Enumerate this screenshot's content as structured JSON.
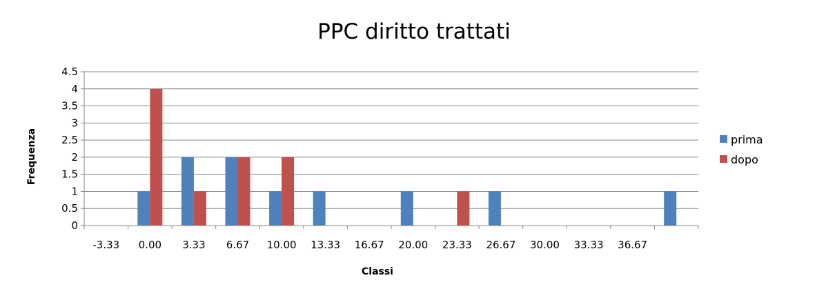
{
  "chart_data": {
    "type": "bar",
    "title": "PPC diritto trattati",
    "xlabel": "Classi",
    "ylabel": "Frequenza",
    "categories": [
      "-3.33",
      "0.00",
      "3.33",
      "6.67",
      "10.00",
      "13.33",
      "16.67",
      "20.00",
      "23.33",
      "26.67",
      "30.00",
      "33.33",
      "36.67",
      ""
    ],
    "series": [
      {
        "name": "prima",
        "color": "#4F81BD",
        "values": [
          0,
          1,
          2,
          2,
          1,
          1,
          0,
          1,
          0,
          1,
          0,
          0,
          0,
          1
        ]
      },
      {
        "name": "dopo",
        "color": "#C0504D",
        "values": [
          0,
          4,
          1,
          2,
          2,
          0,
          0,
          0,
          1,
          0,
          0,
          0,
          0,
          0
        ]
      }
    ],
    "ylim": [
      0,
      4.5
    ],
    "yticks": [
      "0",
      "0.5",
      "1",
      "1.5",
      "2",
      "2.5",
      "3",
      "3.5",
      "4",
      "4.5"
    ],
    "grid": true,
    "legend_position": "right"
  }
}
